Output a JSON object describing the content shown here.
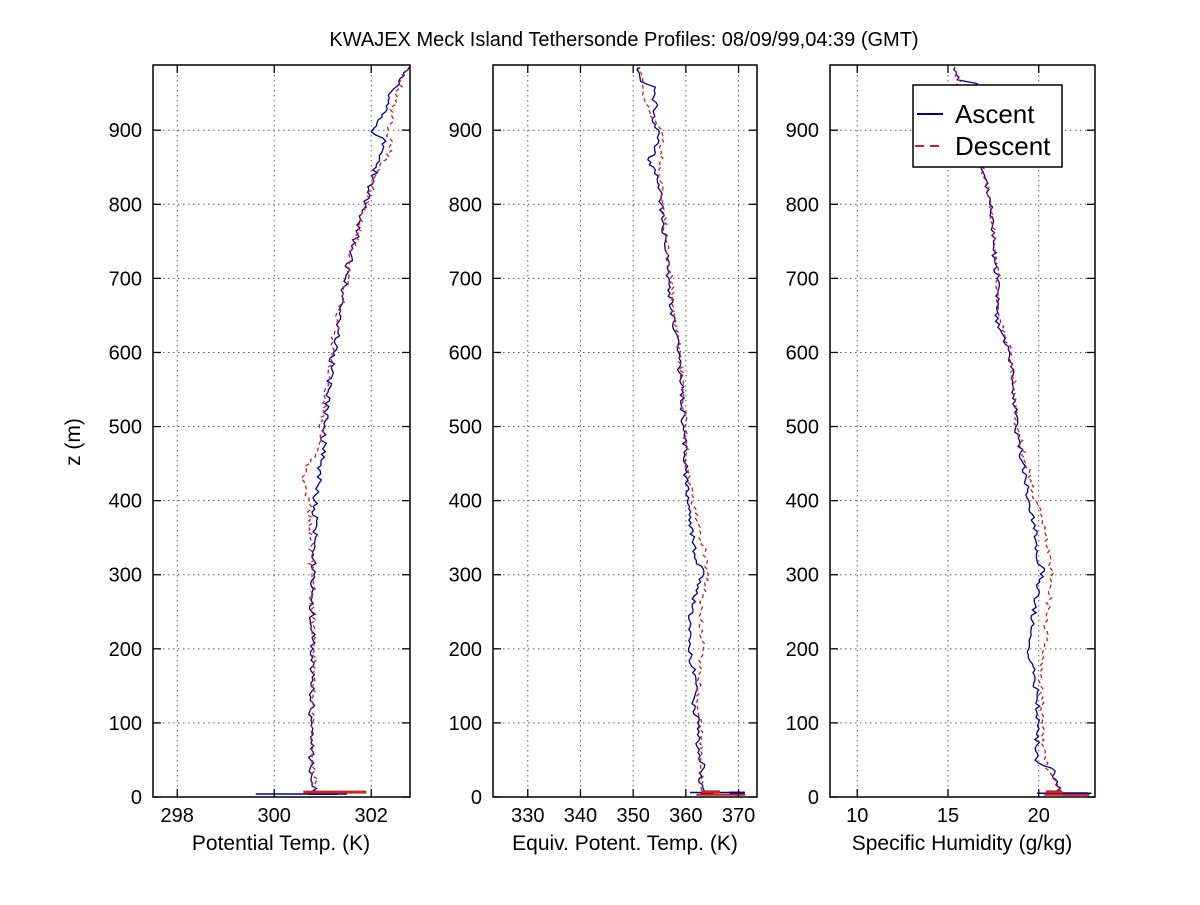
{
  "figure": {
    "background": "#ffffff"
  },
  "chart_data": {
    "type": "line",
    "title": "KWAJEX Meck Island Tethersonde Profiles: 08/09/99,04:39 (GMT)",
    "ylabel": "z (m)",
    "ylim": [
      0,
      988
    ],
    "yticks": [
      0,
      100,
      200,
      300,
      400,
      500,
      600,
      700,
      800,
      900
    ],
    "grid": "dotted",
    "legend": {
      "position": "top-right-of-third-panel",
      "entries": [
        {
          "label": "Ascent",
          "color": "#000099",
          "style": "solid"
        },
        {
          "label": "Descent",
          "color": "#cc2222",
          "style": "dashed"
        }
      ]
    },
    "panels": [
      {
        "xlabel": "Potential Temp. (K)",
        "xlim": [
          297.5,
          302.8
        ],
        "xticks": [
          298,
          300,
          302
        ],
        "series": [
          {
            "name": "Ascent",
            "color": "#000099",
            "style": "solid",
            "noise": 0.04,
            "points": [
              [
                300.9,
                5
              ],
              [
                300.78,
                15
              ],
              [
                300.75,
                50
              ],
              [
                300.78,
                100
              ],
              [
                300.76,
                150
              ],
              [
                300.8,
                200
              ],
              [
                300.78,
                250
              ],
              [
                300.82,
                300
              ],
              [
                300.85,
                350
              ],
              [
                300.83,
                400
              ],
              [
                300.95,
                440
              ],
              [
                301.0,
                470
              ],
              [
                301.05,
                500
              ],
              [
                301.12,
                550
              ],
              [
                301.22,
                600
              ],
              [
                301.32,
                630
              ],
              [
                301.35,
                660
              ],
              [
                301.47,
                700
              ],
              [
                301.62,
                740
              ],
              [
                301.78,
                780
              ],
              [
                301.95,
                820
              ],
              [
                302.1,
                850
              ],
              [
                302.22,
                870
              ],
              [
                302.3,
                885
              ],
              [
                302.0,
                898
              ],
              [
                302.12,
                910
              ],
              [
                302.3,
                925
              ],
              [
                302.35,
                940
              ],
              [
                302.45,
                955
              ],
              [
                302.6,
                970
              ],
              [
                302.78,
                985
              ]
            ]
          },
          {
            "name": "Descent",
            "color": "#cc2222",
            "style": "dashed",
            "noise": 0.04,
            "points": [
              [
                300.85,
                8
              ],
              [
                300.85,
                20
              ],
              [
                300.8,
                60
              ],
              [
                300.78,
                100
              ],
              [
                300.8,
                150
              ],
              [
                300.82,
                200
              ],
              [
                300.8,
                250
              ],
              [
                300.78,
                300
              ],
              [
                300.74,
                350
              ],
              [
                300.72,
                400
              ],
              [
                300.55,
                430
              ],
              [
                300.75,
                455
              ],
              [
                300.95,
                480
              ],
              [
                301.02,
                520
              ],
              [
                301.1,
                560
              ],
              [
                301.18,
                600
              ],
              [
                301.3,
                640
              ],
              [
                301.42,
                680
              ],
              [
                301.55,
                720
              ],
              [
                301.72,
                760
              ],
              [
                301.88,
                800
              ],
              [
                302.1,
                840
              ],
              [
                302.3,
                860
              ],
              [
                302.4,
                880
              ],
              [
                302.35,
                900
              ],
              [
                302.42,
                920
              ],
              [
                302.5,
                940
              ],
              [
                302.55,
                955
              ],
              [
                302.65,
                970
              ],
              [
                302.72,
                985
              ]
            ]
          }
        ],
        "surface_segments": [
          {
            "series": "Ascent",
            "color": "#000099",
            "z": 4,
            "x1": 299.62,
            "x2": 301.5,
            "w": 1.5
          },
          {
            "series": "Ascent",
            "color": "#000099",
            "z": 5,
            "x1": 300.7,
            "x2": 301.3,
            "w": 3.5
          },
          {
            "series": "Descent",
            "color": "#cc2222",
            "z": 6.5,
            "x1": 300.6,
            "x2": 301.9,
            "w": 3
          }
        ]
      },
      {
        "xlabel": "Equiv. Potent. Temp. (K)",
        "xlim": [
          323.4,
          373.5
        ],
        "xticks": [
          330,
          340,
          350,
          360,
          370
        ],
        "series": [
          {
            "name": "Ascent",
            "color": "#000099",
            "style": "solid",
            "noise": 0.3,
            "points": [
              [
                363.5,
                8
              ],
              [
                362.5,
                20
              ],
              [
                363.5,
                40
              ],
              [
                362.3,
                60
              ],
              [
                362.2,
                100
              ],
              [
                361.4,
                130
              ],
              [
                361.9,
                160
              ],
              [
                360.5,
                200
              ],
              [
                360.8,
                230
              ],
              [
                361.2,
                260
              ],
              [
                362.8,
                290
              ],
              [
                363.4,
                305
              ],
              [
                362.0,
                315
              ],
              [
                361.6,
                340
              ],
              [
                361.0,
                370
              ],
              [
                360.3,
                400
              ],
              [
                359.9,
                450
              ],
              [
                359.6,
                500
              ],
              [
                359.2,
                550
              ],
              [
                358.6,
                600
              ],
              [
                357.6,
                640
              ],
              [
                357.0,
                680
              ],
              [
                356.8,
                700
              ],
              [
                356.1,
                750
              ],
              [
                355.4,
                800
              ],
              [
                354.6,
                830
              ],
              [
                353.9,
                850
              ],
              [
                352.8,
                860
              ],
              [
                354.2,
                870
              ],
              [
                354.6,
                890
              ],
              [
                354.8,
                900
              ],
              [
                353.6,
                915
              ],
              [
                354.3,
                930
              ],
              [
                353.9,
                945
              ],
              [
                354.2,
                958
              ],
              [
                351.4,
                966
              ],
              [
                351.2,
                975
              ],
              [
                351.0,
                985
              ]
            ]
          },
          {
            "name": "Descent",
            "color": "#cc2222",
            "style": "dashed",
            "noise": 0.3,
            "points": [
              [
                363.0,
                8
              ],
              [
                362.8,
                40
              ],
              [
                362.9,
                80
              ],
              [
                362.2,
                120
              ],
              [
                362.4,
                160
              ],
              [
                363.3,
                200
              ],
              [
                362.7,
                240
              ],
              [
                363.2,
                270
              ],
              [
                364.3,
                300
              ],
              [
                363.6,
                330
              ],
              [
                362.6,
                360
              ],
              [
                361.2,
                400
              ],
              [
                360.2,
                450
              ],
              [
                359.8,
                500
              ],
              [
                359.4,
                550
              ],
              [
                358.8,
                600
              ],
              [
                357.7,
                650
              ],
              [
                357.1,
                700
              ],
              [
                356.3,
                750
              ],
              [
                355.6,
                800
              ],
              [
                354.9,
                840
              ],
              [
                355.4,
                870
              ],
              [
                355.5,
                900
              ],
              [
                353.0,
                920
              ],
              [
                352.2,
                940
              ],
              [
                351.8,
                960
              ],
              [
                351.6,
                975
              ],
              [
                351.3,
                985
              ]
            ]
          }
        ],
        "surface_segments": [
          {
            "series": "Ascent",
            "color": "#000099",
            "z": 6,
            "x1": 360.8,
            "x2": 369.7,
            "w": 1.5
          },
          {
            "series": "Ascent",
            "color": "#000099",
            "z": 5,
            "x1": 368.3,
            "x2": 371.2,
            "w": 3.5
          },
          {
            "series": "Ascent",
            "color": "#000099",
            "z": 4,
            "x1": 362.8,
            "x2": 365.3,
            "w": 3
          },
          {
            "series": "Descent",
            "color": "#cc2222",
            "z": 3,
            "x1": 362.0,
            "x2": 371.3,
            "w": 2
          },
          {
            "series": "Descent",
            "color": "#cc2222",
            "z": 7,
            "x1": 363.0,
            "x2": 366.5,
            "w": 3
          }
        ]
      },
      {
        "xlabel": "Specific Humidity (g/kg)",
        "xlim": [
          8.5,
          23.1
        ],
        "xticks": [
          10,
          15,
          20
        ],
        "series": [
          {
            "name": "Ascent",
            "color": "#000099",
            "style": "solid",
            "noise": 0.09,
            "points": [
              [
                21.0,
                8
              ],
              [
                21.2,
                12
              ],
              [
                20.8,
                25
              ],
              [
                20.9,
                35
              ],
              [
                19.8,
                50
              ],
              [
                19.9,
                70
              ],
              [
                20.0,
                100
              ],
              [
                19.9,
                130
              ],
              [
                19.8,
                160
              ],
              [
                19.45,
                200
              ],
              [
                19.6,
                230
              ],
              [
                19.8,
                260
              ],
              [
                20.05,
                290
              ],
              [
                20.3,
                305
              ],
              [
                19.95,
                315
              ],
              [
                19.9,
                340
              ],
              [
                19.7,
                370
              ],
              [
                19.45,
                400
              ],
              [
                19.15,
                450
              ],
              [
                18.75,
                500
              ],
              [
                18.6,
                550
              ],
              [
                18.4,
                600
              ],
              [
                17.9,
                630
              ],
              [
                17.6,
                650
              ],
              [
                17.75,
                680
              ],
              [
                17.7,
                700
              ],
              [
                17.5,
                750
              ],
              [
                17.3,
                800
              ],
              [
                17.0,
                840
              ],
              [
                16.8,
                850
              ],
              [
                16.6,
                870
              ],
              [
                16.3,
                900
              ],
              [
                15.9,
                930
              ],
              [
                15.75,
                950
              ],
              [
                16.4,
                958
              ],
              [
                16.6,
                963
              ],
              [
                15.5,
                968
              ],
              [
                15.45,
                975
              ],
              [
                15.4,
                985
              ]
            ]
          },
          {
            "name": "Descent",
            "color": "#cc2222",
            "style": "dashed",
            "noise": 0.09,
            "points": [
              [
                21.3,
                6
              ],
              [
                21.0,
                15
              ],
              [
                20.3,
                50
              ],
              [
                20.2,
                100
              ],
              [
                20.1,
                150
              ],
              [
                20.3,
                200
              ],
              [
                20.5,
                250
              ],
              [
                20.75,
                300
              ],
              [
                20.5,
                330
              ],
              [
                20.3,
                360
              ],
              [
                19.85,
                400
              ],
              [
                19.3,
                450
              ],
              [
                18.8,
                500
              ],
              [
                18.65,
                550
              ],
              [
                18.45,
                600
              ],
              [
                17.8,
                650
              ],
              [
                17.75,
                700
              ],
              [
                17.55,
                750
              ],
              [
                17.35,
                800
              ],
              [
                16.9,
                850
              ],
              [
                16.35,
                900
              ],
              [
                15.7,
                950
              ],
              [
                15.5,
                970
              ],
              [
                15.35,
                985
              ]
            ]
          }
        ],
        "surface_segments": [
          {
            "series": "Ascent",
            "color": "#000099",
            "z": 5,
            "x1": 19.9,
            "x2": 22.9,
            "w": 1.5
          },
          {
            "series": "Ascent",
            "color": "#000099",
            "z": 4,
            "x1": 21.3,
            "x2": 22.7,
            "w": 3.5
          },
          {
            "series": "Descent",
            "color": "#cc2222",
            "z": 3,
            "x1": 20.3,
            "x2": 22.8,
            "w": 2
          },
          {
            "series": "Descent",
            "color": "#cc2222",
            "z": 7,
            "x1": 20.4,
            "x2": 21.3,
            "w": 3
          }
        ]
      }
    ]
  }
}
